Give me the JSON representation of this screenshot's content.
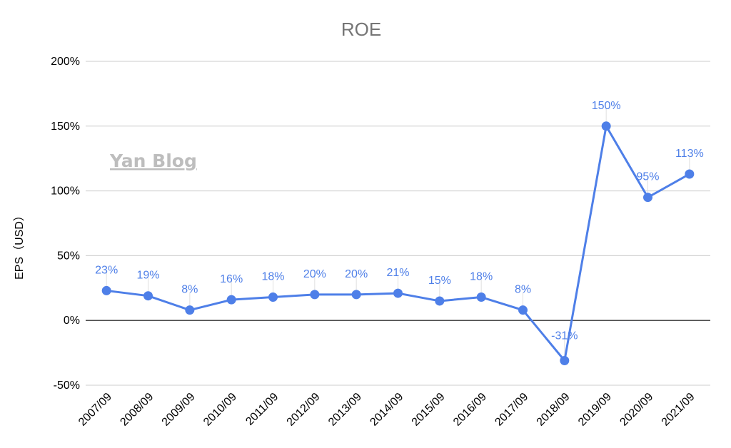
{
  "chart_data": {
    "type": "line",
    "title": "ROE",
    "xlabel": "",
    "ylabel": "EPS（USD）",
    "categories": [
      "2007/09",
      "2008/09",
      "2009/09",
      "2010/09",
      "2011/09",
      "2012/09",
      "2013/09",
      "2014/09",
      "2015/09",
      "2016/09",
      "2017/09",
      "2018/09",
      "2019/09",
      "2020/09",
      "2021/09"
    ],
    "series": [
      {
        "values": [
          23,
          19,
          8,
          16,
          18,
          20,
          20,
          21,
          15,
          18,
          8,
          -31,
          150,
          95,
          113
        ],
        "data_labels": [
          "23%",
          "19%",
          "8%",
          "16%",
          "18%",
          "20%",
          "20%",
          "21%",
          "15%",
          "18%",
          "8%",
          "-31%",
          "150%",
          "95%",
          "113%"
        ]
      }
    ],
    "ylim": [
      -50,
      200
    ],
    "yticks": [
      -50,
      0,
      50,
      100,
      150,
      200
    ],
    "ytick_labels": [
      "-50%",
      "0%",
      "50%",
      "100%",
      "150%",
      "200%"
    ],
    "grid": true,
    "legend": "none",
    "series_color": "#4e7fe8",
    "label_color": "#4e7fe8",
    "watermark": "Yan Blog"
  }
}
